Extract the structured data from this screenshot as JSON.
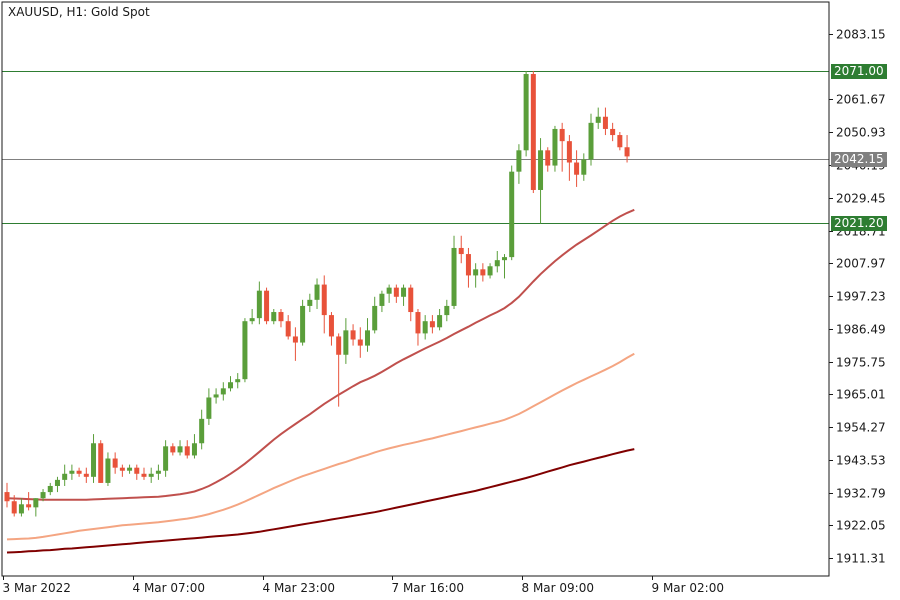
{
  "chart_data": {
    "type": "candlestick",
    "title": "XAUUSD, H1:  Gold Spot",
    "y_ticks": [
      2083.15,
      2061.67,
      2050.93,
      2040.19,
      2029.45,
      2018.71,
      2007.97,
      1997.23,
      1986.49,
      1975.75,
      1965.01,
      1954.27,
      1943.53,
      1932.79,
      1922.05,
      1911.31
    ],
    "y_tick_labels": [
      "2083.15",
      "2061.67",
      "2050.93",
      "2040.19",
      "2029.45",
      "2018.71",
      "2007.97",
      "1997.23",
      "1986.49",
      "1975.75",
      "1965.01",
      "1954.27",
      "1943.53",
      "1932.79",
      "1922.05",
      "1911.31"
    ],
    "ylim": [
      1905.5,
      2093.6
    ],
    "x_labels": [
      {
        "text": "3 Mar 2022",
        "index": 0
      },
      {
        "text": "4 Mar 07:00",
        "index": 18
      },
      {
        "text": "4 Mar 23:00",
        "index": 36
      },
      {
        "text": "7 Mar 16:00",
        "index": 54
      },
      {
        "text": "8 Mar 09:00",
        "index": 72
      },
      {
        "text": "9 Mar 02:00",
        "index": 90
      }
    ],
    "horizontal_levels": [
      {
        "label": "2071.00",
        "value": 2071.0,
        "color": "#2e7d32"
      },
      {
        "label": "2042.15",
        "value": 2042.15,
        "color": "#808080"
      },
      {
        "label": "2021.20",
        "value": 2021.2,
        "color": "#2e7d32"
      }
    ],
    "colors": {
      "up": "#5a9e3a",
      "down": "#e8523a",
      "grid_border": "#1a1a1a"
    },
    "ohlc": [
      [
        1933,
        1936,
        1928,
        1930
      ],
      [
        1930,
        1932,
        1925,
        1926
      ],
      [
        1926,
        1931,
        1925,
        1929
      ],
      [
        1929,
        1933,
        1927,
        1928
      ],
      [
        1928,
        1931,
        1925,
        1931
      ],
      [
        1931,
        1934,
        1930,
        1933
      ],
      [
        1933,
        1936,
        1932,
        1935
      ],
      [
        1935,
        1938,
        1933,
        1937
      ],
      [
        1937,
        1942,
        1935,
        1939
      ],
      [
        1939,
        1942,
        1937,
        1940
      ],
      [
        1940,
        1941,
        1938,
        1939
      ],
      [
        1939,
        1941,
        1936,
        1938
      ],
      [
        1938,
        1952,
        1936,
        1949
      ],
      [
        1949,
        1950,
        1936,
        1936
      ],
      [
        1936,
        1946,
        1935,
        1944
      ],
      [
        1944,
        1946,
        1939,
        1941
      ],
      [
        1941,
        1942,
        1938,
        1940
      ],
      [
        1940,
        1942,
        1939,
        1941
      ],
      [
        1941,
        1942,
        1937,
        1939
      ],
      [
        1939,
        1941,
        1937,
        1938
      ],
      [
        1938,
        1941,
        1936,
        1939
      ],
      [
        1939,
        1942,
        1937,
        1940
      ],
      [
        1940,
        1950,
        1938,
        1948
      ],
      [
        1948,
        1949,
        1945,
        1946
      ],
      [
        1946,
        1950,
        1945,
        1948
      ],
      [
        1948,
        1950,
        1944,
        1945
      ],
      [
        1945,
        1952,
        1944,
        1949
      ],
      [
        1949,
        1960,
        1947,
        1957
      ],
      [
        1957,
        1967,
        1955,
        1964
      ],
      [
        1964,
        1967,
        1962,
        1965
      ],
      [
        1965,
        1969,
        1963,
        1967
      ],
      [
        1967,
        1971,
        1966,
        1969
      ],
      [
        1969,
        1972,
        1967,
        1970
      ],
      [
        1970,
        1990,
        1969,
        1989
      ],
      [
        1989,
        1993,
        1988,
        1990
      ],
      [
        1990,
        2002,
        1988,
        1999
      ],
      [
        1999,
        2000,
        1988,
        1989
      ],
      [
        1989,
        1993,
        1988,
        1992
      ],
      [
        1992,
        1993,
        1987,
        1989
      ],
      [
        1989,
        1991,
        1983,
        1984
      ],
      [
        1984,
        1987,
        1976,
        1982
      ],
      [
        1982,
        1996,
        1981,
        1994
      ],
      [
        1994,
        1998,
        1992,
        1996
      ],
      [
        1996,
        2003,
        1993,
        2001
      ],
      [
        2001,
        2004,
        1985,
        1991
      ],
      [
        1991,
        1992,
        1981,
        1984
      ],
      [
        1984,
        1985,
        1961,
        1978
      ],
      [
        1978,
        1990,
        1975,
        1986
      ],
      [
        1986,
        1988,
        1981,
        1983
      ],
      [
        1983,
        1987,
        1977,
        1981
      ],
      [
        1981,
        1990,
        1979,
        1986
      ],
      [
        1986,
        1997,
        1985,
        1994
      ],
      [
        1994,
        1999,
        1992,
        1998
      ],
      [
        1998,
        2001,
        1995,
        2000
      ],
      [
        2000,
        2001,
        1995,
        1997
      ],
      [
        1997,
        2001,
        1994,
        2000
      ],
      [
        2000,
        2001,
        1989,
        1992
      ],
      [
        1992,
        1993,
        1981,
        1985
      ],
      [
        1985,
        1991,
        1983,
        1989
      ],
      [
        1989,
        1991,
        1985,
        1987
      ],
      [
        1987,
        1993,
        1986,
        1991
      ],
      [
        1991,
        1996,
        1989,
        1994
      ],
      [
        1994,
        2017,
        1993,
        2013
      ],
      [
        2013,
        2017,
        2008,
        2011
      ],
      [
        2011,
        2013,
        2000,
        2004
      ],
      [
        2004,
        2008,
        2000,
        2006
      ],
      [
        2006,
        2008,
        2002,
        2004
      ],
      [
        2004,
        2008,
        2003,
        2007
      ],
      [
        2007,
        2012,
        2005,
        2009
      ],
      [
        2009,
        2011,
        2003,
        2010
      ],
      [
        2010,
        2040,
        2009,
        2038
      ],
      [
        2038,
        2047,
        2034,
        2045
      ],
      [
        2045,
        2071,
        2043,
        2070
      ],
      [
        2070,
        2071,
        2031,
        2032
      ],
      [
        2032,
        2049,
        2021,
        2045
      ],
      [
        2045,
        2046,
        2038,
        2040
      ],
      [
        2040,
        2053,
        2038,
        2052
      ],
      [
        2052,
        2054,
        2038,
        2048
      ],
      [
        2048,
        2050,
        2035,
        2041
      ],
      [
        2041,
        2045,
        2033,
        2037
      ],
      [
        2037,
        2044,
        2035,
        2042
      ],
      [
        2042,
        2057,
        2040,
        2054
      ],
      [
        2054,
        2059,
        2052,
        2056
      ],
      [
        2056,
        2059,
        2050,
        2052
      ],
      [
        2052,
        2054,
        2048,
        2050
      ],
      [
        2050,
        2051,
        2045,
        2046
      ],
      [
        2046,
        2050,
        2041,
        2043
      ]
    ],
    "ma_series": [
      {
        "color": "#c0504d",
        "values": [
          1931.0,
          1930.9,
          1930.8,
          1930.7,
          1930.6,
          1930.5,
          1930.5,
          1930.5,
          1930.5,
          1930.5,
          1930.5,
          1930.5,
          1930.6,
          1930.7,
          1930.8,
          1930.9,
          1931.0,
          1931.1,
          1931.2,
          1931.3,
          1931.4,
          1931.5,
          1931.7,
          1932.0,
          1932.3,
          1932.7,
          1933.2,
          1934.0,
          1935.0,
          1936.2,
          1937.5,
          1939.0,
          1940.6,
          1942.3,
          1944.2,
          1946.2,
          1948.2,
          1950.2,
          1952.0,
          1953.7,
          1955.3,
          1956.9,
          1958.5,
          1960.2,
          1961.9,
          1963.4,
          1964.9,
          1966.3,
          1967.7,
          1969.0,
          1970.0,
          1971.1,
          1972.4,
          1973.8,
          1975.2,
          1976.5,
          1977.7,
          1978.9,
          1980.1,
          1981.2,
          1982.3,
          1983.5,
          1984.8,
          1986.0,
          1987.2,
          1988.5,
          1989.7,
          1990.9,
          1992.0,
          1993.3,
          1995.0,
          1997.0,
          1999.5,
          2002.0,
          2004.4,
          2006.6,
          2008.7,
          2010.6,
          2012.4,
          2014.1,
          2015.6,
          2017.1,
          2018.7,
          2020.3,
          2021.9,
          2023.3,
          2024.5,
          2025.5
        ]
      },
      {
        "color": "#f4a582",
        "values": [
          1917.5,
          1917.6,
          1917.7,
          1917.8,
          1918.0,
          1918.3,
          1918.7,
          1919.1,
          1919.5,
          1919.9,
          1920.3,
          1920.6,
          1920.9,
          1921.2,
          1921.5,
          1921.8,
          1922.1,
          1922.3,
          1922.5,
          1922.7,
          1922.9,
          1923.1,
          1923.4,
          1923.7,
          1924.0,
          1924.3,
          1924.7,
          1925.2,
          1925.8,
          1926.5,
          1927.2,
          1928.0,
          1928.9,
          1929.9,
          1931.0,
          1932.1,
          1933.2,
          1934.3,
          1935.3,
          1936.3,
          1937.3,
          1938.2,
          1939.0,
          1939.8,
          1940.6,
          1941.4,
          1942.2,
          1942.9,
          1943.7,
          1944.5,
          1945.2,
          1946.0,
          1946.7,
          1947.3,
          1947.9,
          1948.5,
          1949.0,
          1949.5,
          1950.1,
          1950.6,
          1951.2,
          1951.8,
          1952.4,
          1953.0,
          1953.6,
          1954.2,
          1954.8,
          1955.4,
          1956.0,
          1956.7,
          1957.6,
          1958.6,
          1959.8,
          1961.1,
          1962.4,
          1963.7,
          1965.0,
          1966.3,
          1967.5,
          1968.7,
          1969.8,
          1970.9,
          1972.0,
          1973.1,
          1974.3,
          1975.6,
          1977.0,
          1978.3
        ]
      },
      {
        "color": "#800000",
        "values": [
          1913.2,
          1913.3,
          1913.4,
          1913.6,
          1913.7,
          1913.9,
          1914.0,
          1914.2,
          1914.4,
          1914.5,
          1914.7,
          1914.9,
          1915.1,
          1915.3,
          1915.5,
          1915.7,
          1915.9,
          1916.1,
          1916.3,
          1916.5,
          1916.7,
          1916.9,
          1917.1,
          1917.3,
          1917.5,
          1917.7,
          1917.9,
          1918.1,
          1918.3,
          1918.5,
          1918.7,
          1918.9,
          1919.1,
          1919.4,
          1919.7,
          1920.0,
          1920.4,
          1920.8,
          1921.2,
          1921.6,
          1922.0,
          1922.4,
          1922.8,
          1923.2,
          1923.6,
          1924.0,
          1924.4,
          1924.8,
          1925.2,
          1925.6,
          1926.0,
          1926.4,
          1926.9,
          1927.4,
          1927.9,
          1928.4,
          1928.9,
          1929.4,
          1929.9,
          1930.4,
          1930.9,
          1931.4,
          1931.9,
          1932.4,
          1932.9,
          1933.4,
          1934.0,
          1934.6,
          1935.2,
          1935.8,
          1936.4,
          1937.0,
          1937.6,
          1938.3,
          1939.0,
          1939.7,
          1940.4,
          1941.1,
          1941.8,
          1942.4,
          1943.0,
          1943.6,
          1944.2,
          1944.8,
          1945.4,
          1946.0,
          1946.6,
          1947.1
        ]
      }
    ]
  }
}
